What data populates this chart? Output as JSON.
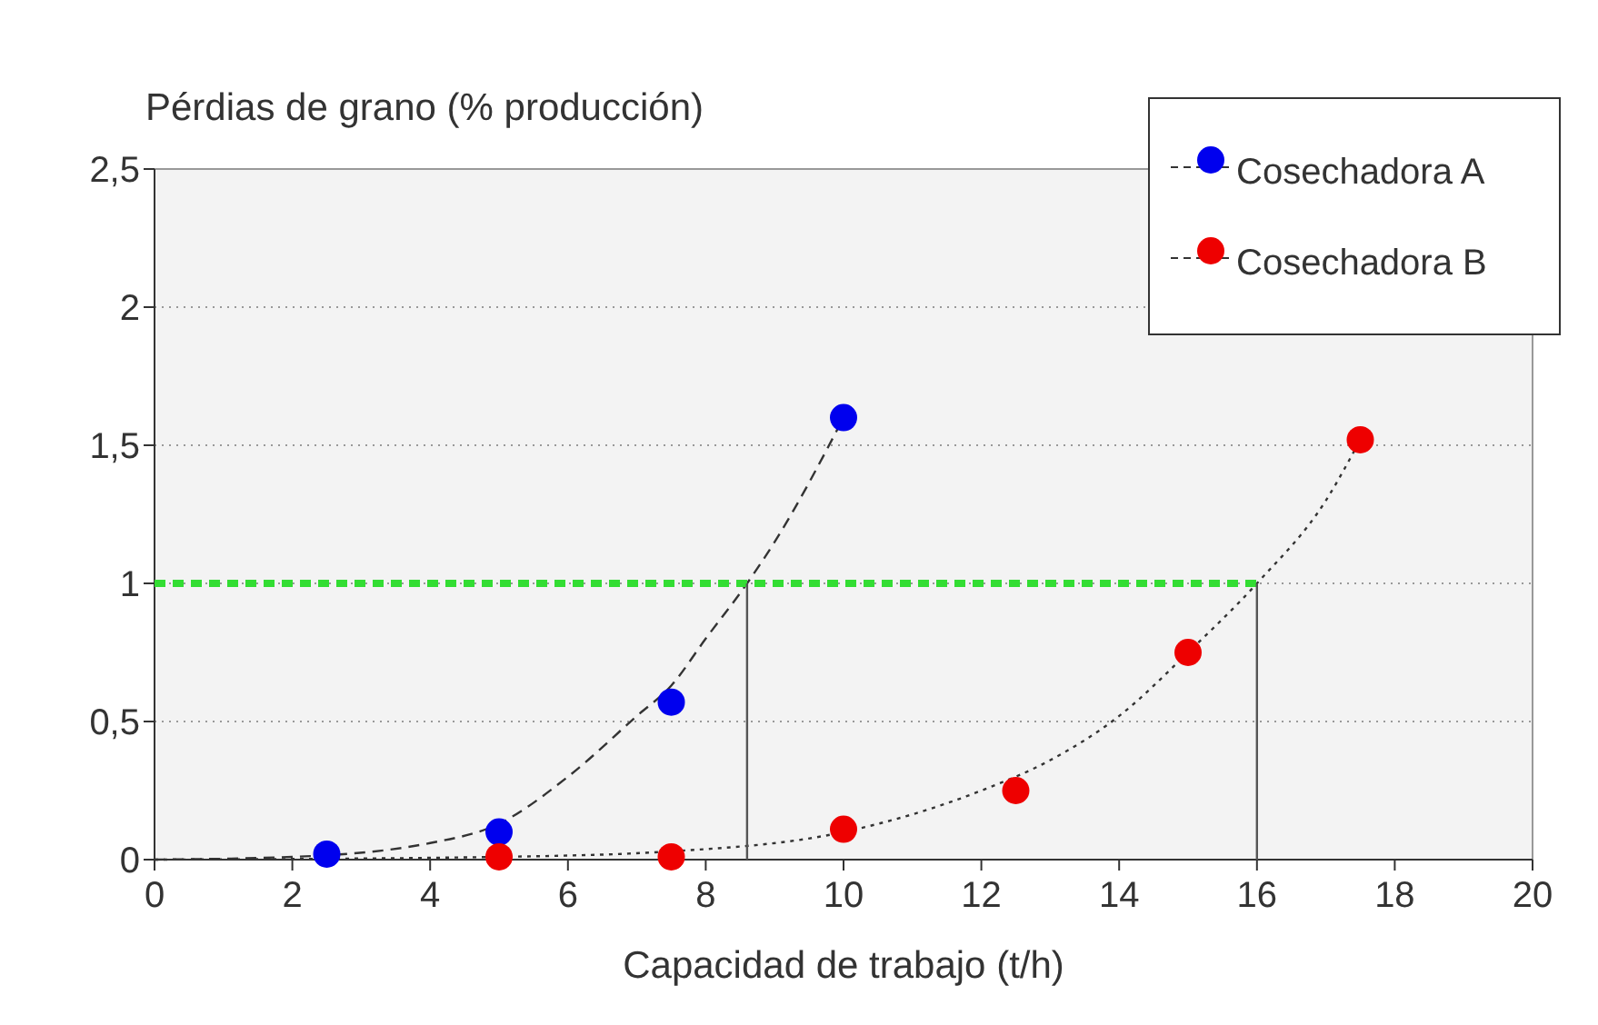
{
  "chart_data": {
    "type": "scatter",
    "ylabel": "Pérdias de grano (% producción)",
    "xlabel": "Capacidad de trabajo (t/h)",
    "xlim": [
      0,
      20
    ],
    "xticks": [
      0,
      2,
      4,
      6,
      8,
      10,
      12,
      14,
      16,
      18,
      20
    ],
    "ylim": [
      0,
      2.5
    ],
    "yticks": [
      0,
      {
        "value": 0.5,
        "label": "0,5"
      },
      1,
      {
        "value": 1.5,
        "label": "1,5"
      },
      2,
      {
        "value": 2.5,
        "label": "2,5"
      }
    ],
    "grid": "y",
    "legend": "top right",
    "series": [
      {
        "type": "line",
        "marker": "none",
        "color": "#333333",
        "line_style": "dashed",
        "x": [
          0,
          2,
          4,
          5,
          6,
          7,
          7.5,
          8,
          8.6,
          9,
          10
        ],
        "values": [
          0,
          0.01,
          0.06,
          0.13,
          0.3,
          0.52,
          0.63,
          0.8,
          1.0,
          1.15,
          1.6
        ]
      },
      {
        "type": "line",
        "marker": "none",
        "color": "#333333",
        "line_style": "dotted",
        "x": [
          0,
          5,
          7.5,
          10,
          12,
          13,
          14,
          15,
          16,
          17,
          17.5
        ],
        "values": [
          0,
          0.01,
          0.03,
          0.1,
          0.25,
          0.36,
          0.52,
          0.75,
          1.0,
          1.3,
          1.52
        ]
      },
      {
        "type": "line",
        "marker": "none",
        "color": "#33dd33",
        "line_style": "dashed",
        "x": [
          0,
          16
        ],
        "values": [
          1,
          1
        ]
      },
      {
        "type": "line",
        "marker": "none",
        "color": "#555555",
        "line_style": "solid",
        "x": [
          8.6,
          8.6
        ],
        "values": [
          0,
          1
        ]
      },
      {
        "type": "line",
        "marker": "none",
        "color": "#555555",
        "line_style": "solid",
        "x": [
          16,
          16
        ],
        "values": [
          0,
          1
        ]
      },
      {
        "name": "Cosechadora A",
        "marker": "circle",
        "color": "#0000ee",
        "x": [
          2.5,
          5,
          7.5,
          10
        ],
        "values": [
          0.02,
          0.1,
          0.57,
          1.6
        ]
      },
      {
        "name": "Cosechadora B",
        "marker": "circle",
        "color": "#ee0000",
        "x": [
          5,
          7.5,
          10,
          12.5,
          15,
          17.5
        ],
        "values": [
          0.01,
          0.01,
          0.11,
          0.25,
          0.75,
          1.52
        ]
      }
    ]
  }
}
